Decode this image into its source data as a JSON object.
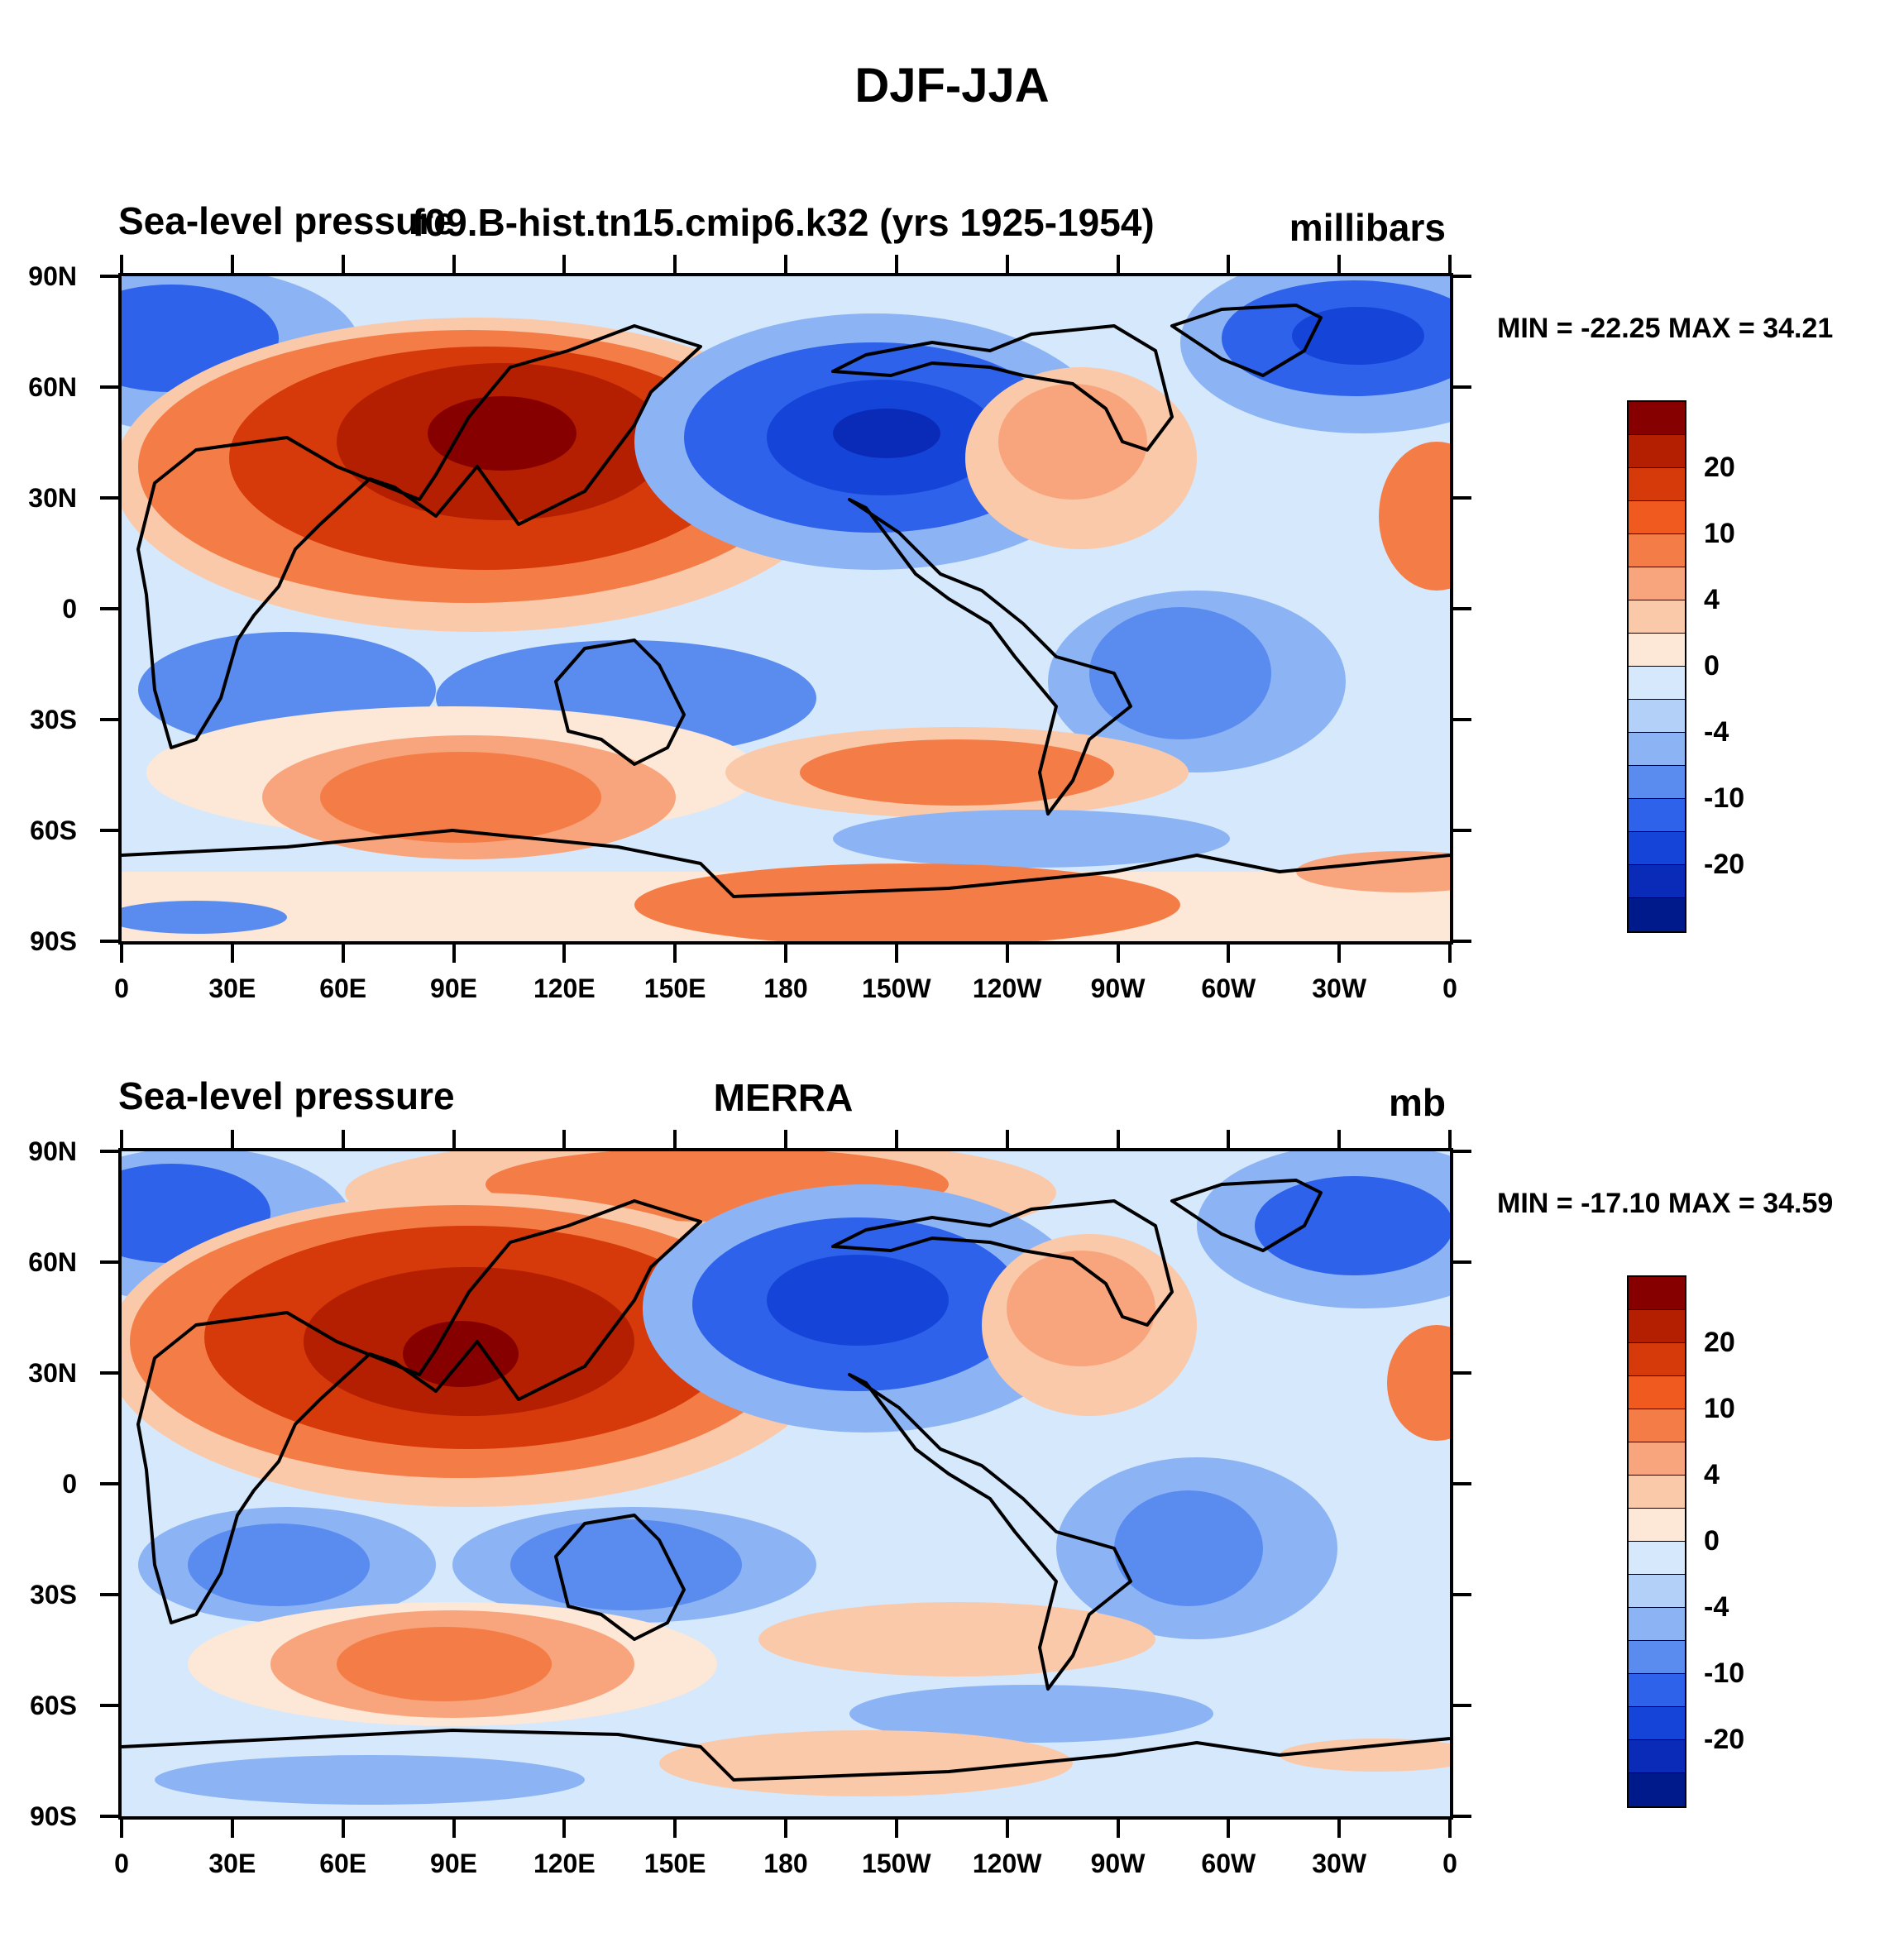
{
  "figure": {
    "title": "DJF-JJA"
  },
  "colorbar_colors": [
    "#870000",
    "#b31f00",
    "#d63a0a",
    "#f05a1e",
    "#f47d47",
    "#f8a57d",
    "#fac9aa",
    "#fde7d6",
    "#d6e8fc",
    "#b3d0f8",
    "#8cb4f5",
    "#5a8cf0",
    "#2e62ea",
    "#1544d9",
    "#0a2bb8",
    "#001a8c"
  ],
  "colorbar_labels": [
    "20",
    "10",
    "4",
    "0",
    "-4",
    "-10",
    "-20"
  ],
  "coastline_color": "#000000",
  "lat_labels": [
    "90N",
    "60N",
    "30N",
    "0",
    "30S",
    "60S",
    "90S"
  ],
  "lon_labels": [
    "0",
    "30E",
    "60E",
    "90E",
    "120E",
    "150E",
    "180",
    "150W",
    "120W",
    "90W",
    "60W",
    "30W",
    "0"
  ],
  "panels": [
    {
      "left_title": "Sea-level pressure",
      "center_title": "f09.B-hist.tn15.cmip6.k32 (yrs 1925-1954)",
      "units": "millibars",
      "min_max": "MIN = -22.25 MAX =  34.21"
    },
    {
      "left_title": "Sea-level pressure",
      "center_title": "MERRA",
      "units": "mb",
      "min_max": "MIN = -17.10 MAX =  34.59"
    }
  ]
}
